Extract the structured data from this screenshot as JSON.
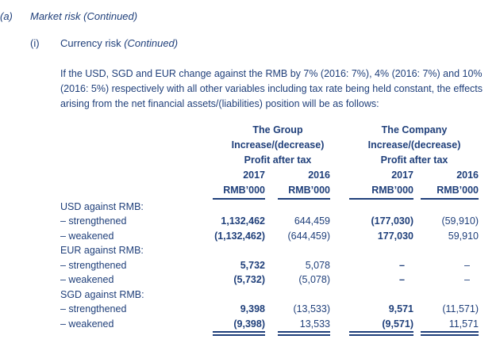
{
  "section": {
    "marker": "(a)",
    "title": "Market risk (Continued)"
  },
  "subsection": {
    "marker": "(i)",
    "title": "Currency risk ",
    "title_suffix": "(Continued)"
  },
  "paragraph": "If the USD, SGD and EUR change against the RMB by 7% (2016: 7%), 4% (2016: 7%) and 10% (2016: 5%) respectively with all other variables including tax rate being held constant, the effects arising from the net financial assets/(liabilities) position will be as follows:",
  "headers": {
    "group": {
      "name": "The Group",
      "line2": "Increase/(decrease)",
      "line3": "Profit after tax",
      "y1": "2017",
      "y2": "2016",
      "u1": "RMB’000",
      "u2": "RMB’000"
    },
    "company": {
      "name": "The Company",
      "line2": "Increase/(decrease)",
      "line3": "Profit after tax",
      "y1": "2017",
      "y2": "2016",
      "u1": "RMB’000",
      "u2": "RMB’000"
    }
  },
  "rows": [
    {
      "label": "USD against RMB:",
      "g17": "",
      "g16": "",
      "c17": "",
      "c16": ""
    },
    {
      "label": "– strengthened",
      "g17": "1,132,462",
      "g16": "644,459",
      "c17": "(177,030)",
      "c16": "(59,910)"
    },
    {
      "label": "– weakened",
      "g17": "(1,132,462)",
      "g16": "(644,459)",
      "c17": "177,030",
      "c16": "59,910"
    },
    {
      "label": "EUR against RMB:",
      "g17": "",
      "g16": "",
      "c17": "",
      "c16": ""
    },
    {
      "label": "– strengthened",
      "g17": "5,732",
      "g16": "5,078",
      "c17": "–",
      "c16": "–"
    },
    {
      "label": "– weakened",
      "g17": "(5,732)",
      "g16": "(5,078)",
      "c17": "–",
      "c16": "–"
    },
    {
      "label": "SGD against RMB:",
      "g17": "",
      "g16": "",
      "c17": "",
      "c16": ""
    },
    {
      "label": "– strengthened",
      "g17": "9,398",
      "g16": "(13,533)",
      "c17": "9,571",
      "c16": "(11,571)"
    },
    {
      "label": "– weakened",
      "g17": "(9,398)",
      "g16": "13,533",
      "c17": "(9,571)",
      "c16": "11,571"
    }
  ]
}
